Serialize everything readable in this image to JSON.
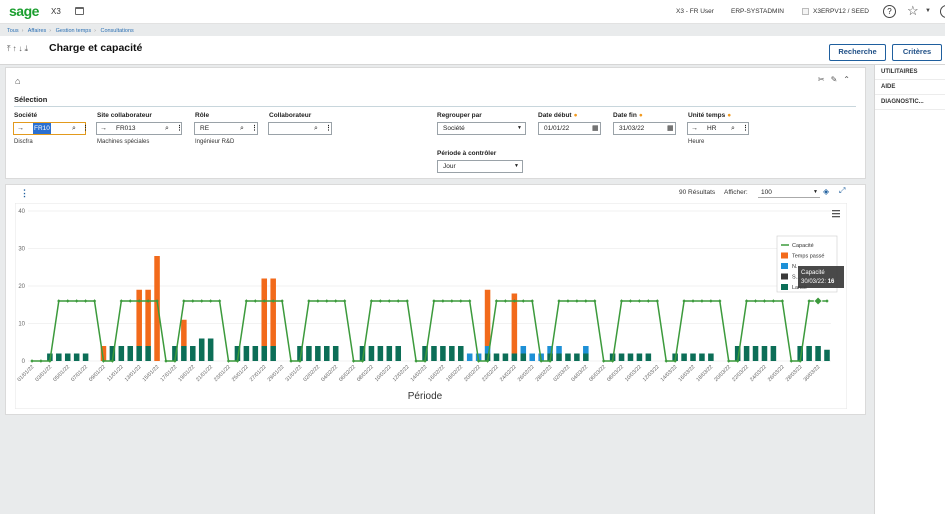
{
  "header": {
    "logo": "sage",
    "app": "X3",
    "user": "X3 - FR User",
    "admin": "ERP-SYSTADMIN",
    "folder": "X3ERPV12 / SEED",
    "help": "?"
  },
  "breadcrumb": [
    "Tous",
    "Affaires",
    "Gestion temps",
    "Consultations"
  ],
  "page": {
    "title": "Charge et capacité",
    "btn_recherche": "Recherche",
    "btn_criteres": "Critères"
  },
  "right_panel": [
    "UTILITAIRES",
    "AIDE",
    "DIAGNOSTIC..."
  ],
  "selection": {
    "title": "Sélection",
    "societe": {
      "label": "Société",
      "value": "FR10",
      "sub": "Discfra"
    },
    "site": {
      "label": "Site collaborateur",
      "value": "FR013",
      "sub": "Machines spéciales"
    },
    "role": {
      "label": "Rôle",
      "value": "RE",
      "sub": "Ingénieur R&D"
    },
    "collaborateur": {
      "label": "Collaborateur",
      "value": ""
    },
    "regrouper": {
      "label": "Regrouper par",
      "value": "Société"
    },
    "date_debut": {
      "label": "Date début",
      "value": "01/01/22"
    },
    "date_fin": {
      "label": "Date fin",
      "value": "31/03/22"
    },
    "unite": {
      "label": "Unité temps",
      "value": "HR",
      "sub": "Heure"
    },
    "periode": {
      "label": "Période à contrôler",
      "value": "Jour"
    }
  },
  "results": {
    "count": "90 Résultats",
    "afficher_label": "Afficher:",
    "afficher_value": "100"
  },
  "chart_data": {
    "type": "bar",
    "xlabel": "Période",
    "ylim": [
      0,
      40
    ],
    "y_ticks": [
      0,
      10,
      20,
      30,
      40
    ],
    "tick_labels": [
      "01/01/22",
      "03/01/22",
      "05/01/22",
      "07/01/22",
      "09/01/22",
      "11/01/22",
      "13/01/22",
      "15/01/22",
      "17/01/22",
      "19/01/22",
      "21/01/22",
      "23/01/22",
      "25/01/22",
      "27/01/22",
      "29/01/22",
      "31/01/22",
      "02/02/22",
      "04/02/22",
      "06/02/22",
      "08/02/22",
      "10/02/22",
      "12/02/22",
      "14/02/22",
      "16/02/22",
      "18/02/22",
      "20/02/22",
      "22/02/22",
      "24/02/22",
      "26/02/22",
      "28/02/22",
      "02/03/22",
      "04/03/22",
      "06/03/22",
      "08/03/22",
      "10/03/22",
      "12/03/22",
      "14/03/22",
      "16/03/22",
      "18/03/22",
      "20/03/22",
      "22/03/22",
      "24/03/22",
      "26/03/22",
      "28/03/22",
      "30/03/22"
    ],
    "legend": [
      "Capacité",
      "Temps passé",
      "N...",
      "S...",
      "Lancé"
    ],
    "tooltip": {
      "title": "Capacité",
      "date": "30/03/22",
      "value": "16"
    },
    "colors": {
      "capacite": "#3c9a3c",
      "temps": "#f26a1b",
      "blue": "#1e90d6",
      "dark": "#3a3a3a",
      "teal": "#0c6e57"
    },
    "series": [
      {
        "name": "Capacité",
        "values": [
          0,
          0,
          0,
          16,
          16,
          16,
          16,
          16,
          0,
          0,
          16,
          16,
          16,
          16,
          16,
          0,
          0,
          16,
          16,
          16,
          16,
          16,
          0,
          0,
          16,
          16,
          16,
          16,
          16,
          0,
          0,
          16,
          16,
          16,
          16,
          16,
          0,
          0,
          16,
          16,
          16,
          16,
          16,
          0,
          0,
          16,
          16,
          16,
          16,
          16,
          0,
          0,
          16,
          16,
          16,
          16,
          16,
          0,
          0,
          16,
          16,
          16,
          16,
          16,
          0,
          0,
          16,
          16,
          16,
          16,
          16,
          0,
          0,
          16,
          16,
          16,
          16,
          16,
          0,
          0,
          16,
          16,
          16,
          16,
          16,
          0,
          0,
          16,
          16,
          16
        ]
      },
      {
        "name": "Lancé",
        "values": [
          0,
          0,
          2,
          2,
          2,
          2,
          2,
          0,
          0,
          4,
          4,
          4,
          4,
          4,
          0,
          0,
          4,
          4,
          4,
          6,
          6,
          0,
          0,
          4,
          4,
          4,
          4,
          4,
          0,
          0,
          4,
          4,
          4,
          4,
          4,
          0,
          0,
          4,
          4,
          4,
          4,
          4,
          0,
          0,
          4,
          4,
          4,
          4,
          4,
          0,
          0,
          2,
          2,
          2,
          2,
          2,
          0,
          0,
          2,
          2,
          2,
          2,
          2,
          0,
          0,
          2,
          2,
          2,
          2,
          2,
          0,
          0,
          2,
          2,
          2,
          2,
          2,
          0,
          0,
          4,
          4,
          4,
          4,
          4,
          0,
          0,
          4,
          4,
          4,
          3
        ]
      },
      {
        "name": "N...",
        "values": [
          0,
          0,
          0,
          0,
          0,
          0,
          0,
          0,
          0,
          0,
          0,
          0,
          0,
          0,
          0,
          0,
          0,
          0,
          0,
          0,
          0,
          0,
          0,
          0,
          0,
          0,
          0,
          0,
          0,
          0,
          0,
          0,
          0,
          0,
          0,
          0,
          0,
          0,
          0,
          0,
          0,
          0,
          0,
          0,
          0,
          0,
          0,
          0,
          0,
          2,
          2,
          2,
          0,
          0,
          0,
          2,
          2,
          2,
          2,
          2,
          0,
          0,
          2,
          0,
          0,
          0,
          0,
          0,
          0,
          0,
          0,
          0,
          0,
          0,
          0,
          0,
          0,
          0,
          0,
          0,
          0,
          0,
          0,
          0,
          0,
          0,
          0,
          0,
          0,
          0
        ]
      },
      {
        "name": "Temps passé",
        "values": [
          0,
          0,
          0,
          0,
          0,
          0,
          0,
          0,
          4,
          0,
          0,
          0,
          15,
          15,
          28,
          0,
          0,
          7,
          0,
          0,
          0,
          0,
          0,
          0,
          0,
          0,
          18,
          18,
          0,
          0,
          0,
          0,
          0,
          0,
          0,
          0,
          0,
          0,
          0,
          0,
          0,
          0,
          0,
          0,
          0,
          0,
          0,
          0,
          0,
          0,
          0,
          15,
          0,
          0,
          16,
          0,
          0,
          0,
          0,
          0,
          0,
          0,
          0,
          0,
          0,
          0,
          0,
          0,
          0,
          0,
          0,
          0,
          0,
          0,
          0,
          0,
          0,
          0,
          0,
          0,
          0,
          0,
          0,
          0,
          0,
          0,
          0,
          0,
          0,
          0
        ]
      }
    ]
  }
}
